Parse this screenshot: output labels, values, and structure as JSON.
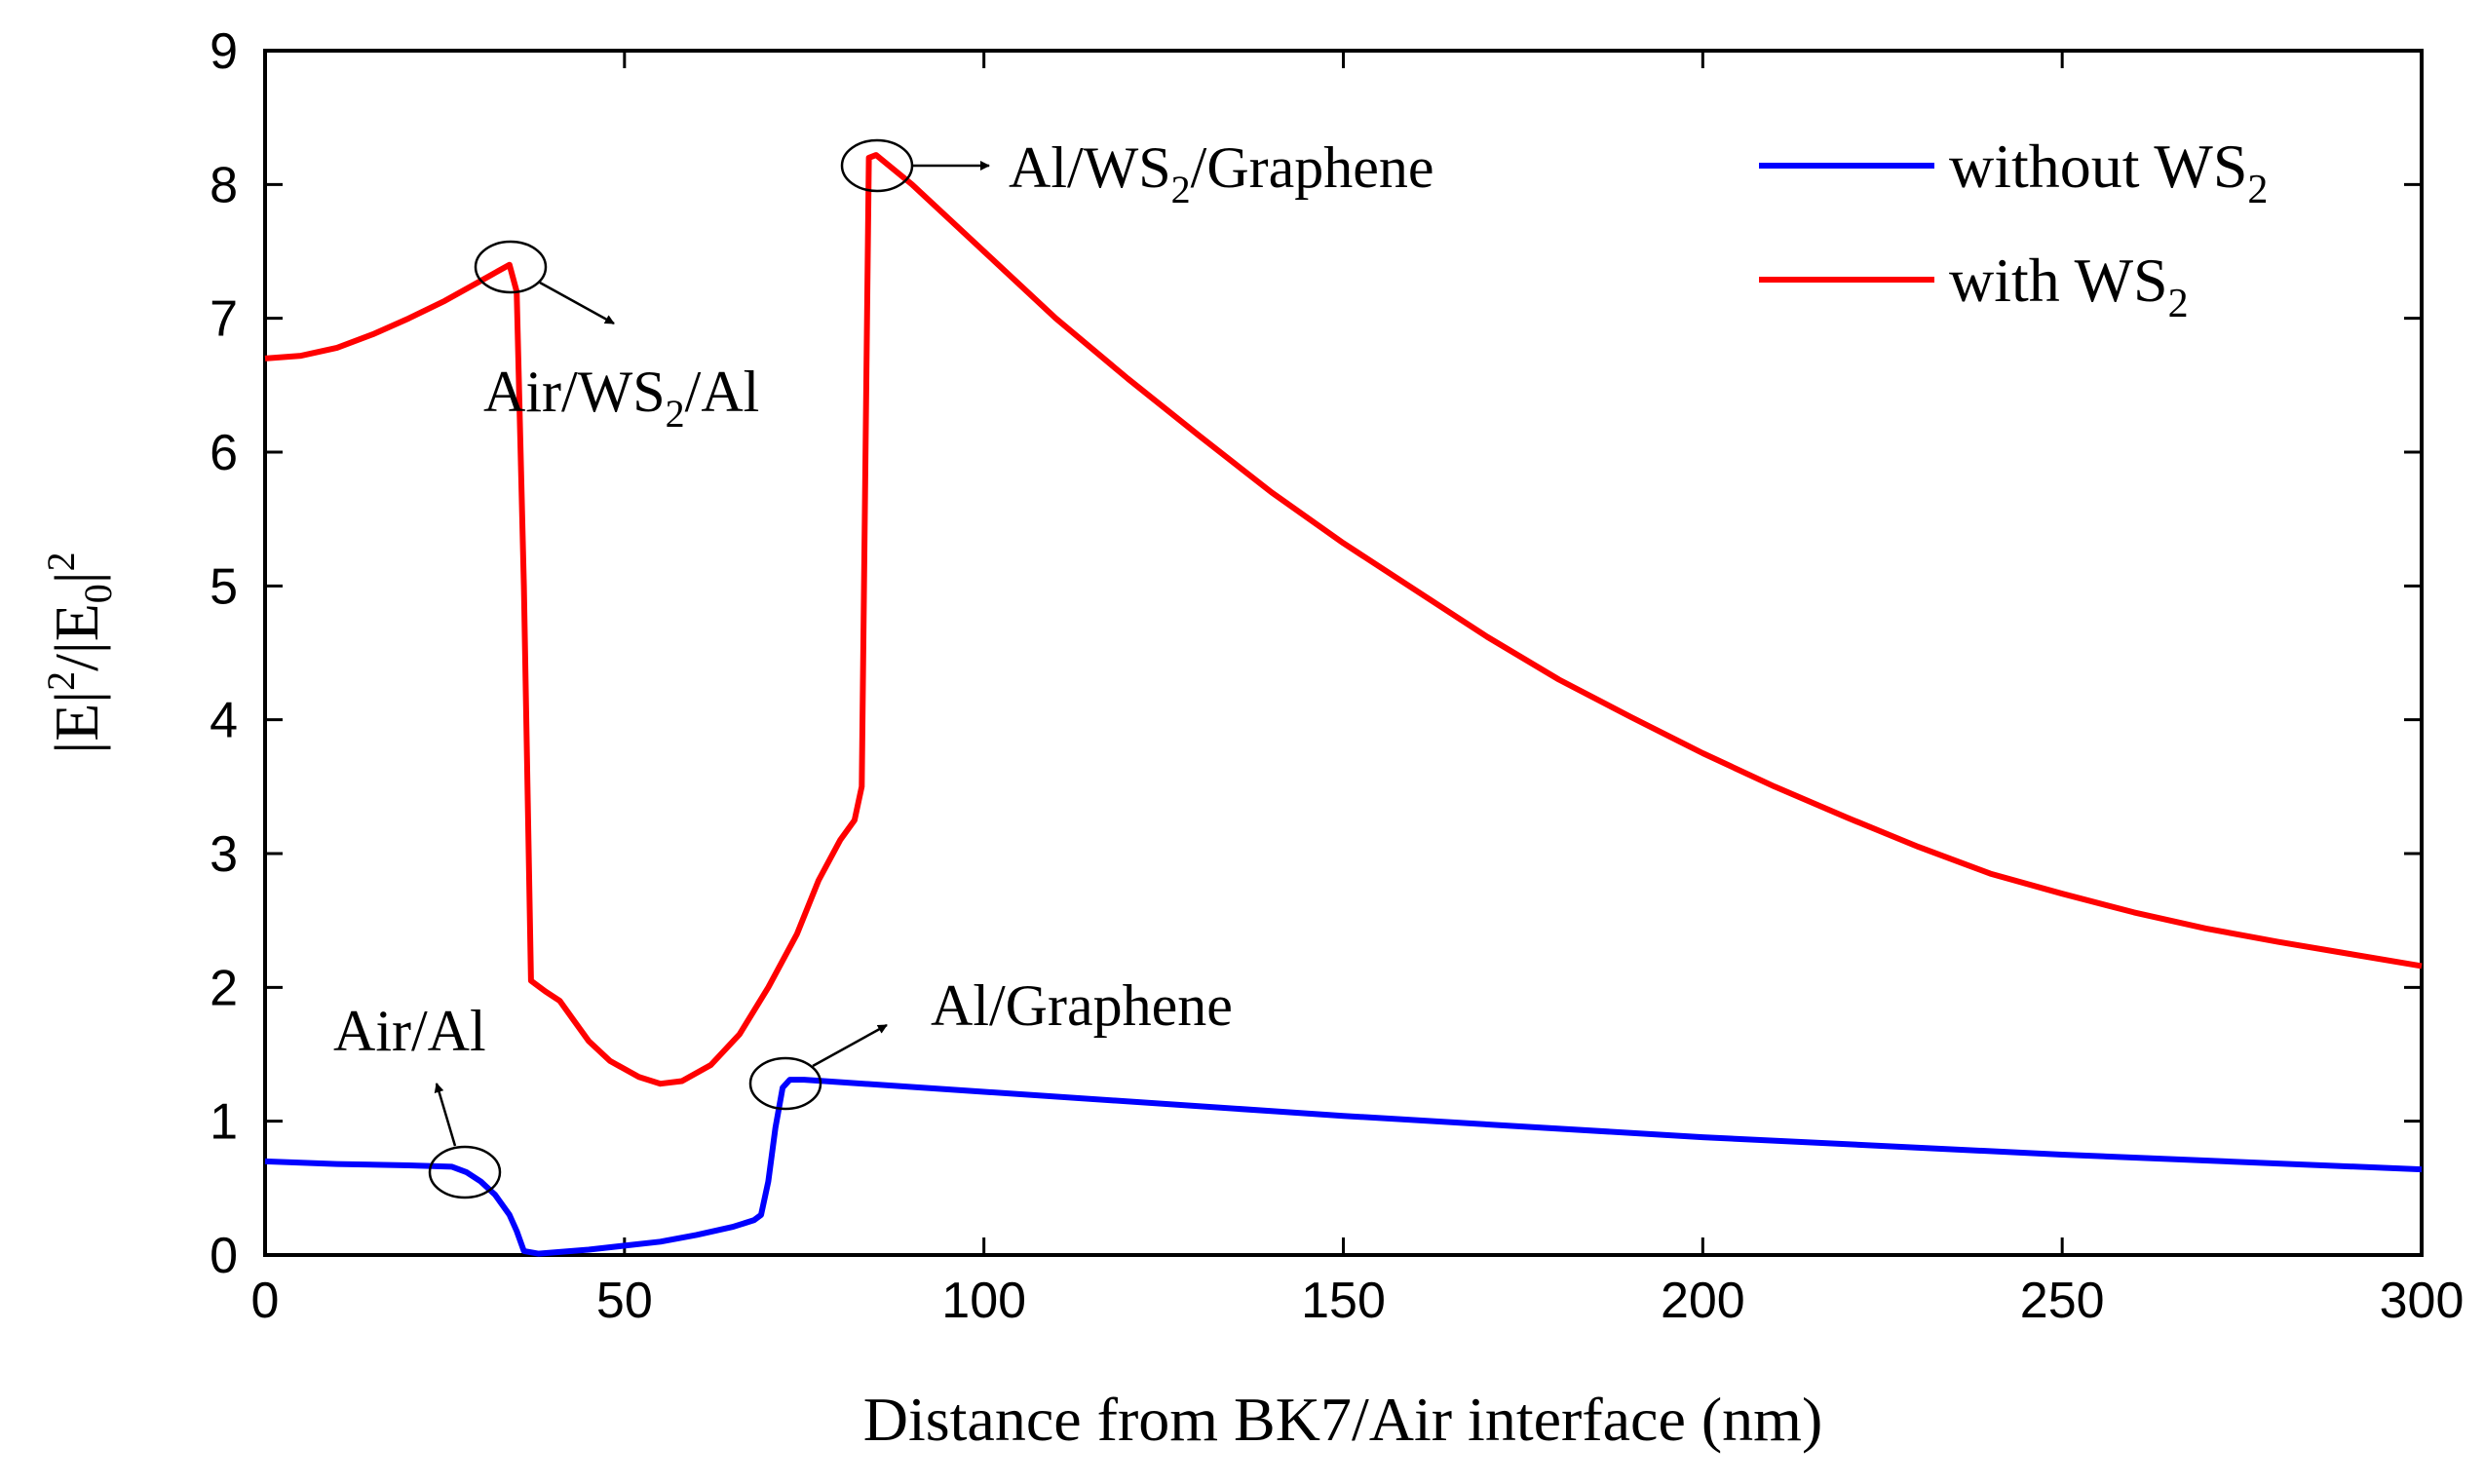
{
  "chart_data": {
    "type": "line",
    "title": "",
    "xlabel": "Distance from BK7/Air interface (nm)",
    "ylabel": "|E|²/|E₀|²",
    "ylabel_parts": [
      "|E|",
      "2",
      "/|E",
      "0",
      "|",
      "2"
    ],
    "xlim": [
      0,
      300
    ],
    "ylim": [
      0,
      9
    ],
    "x_ticks": [
      0,
      50,
      100,
      150,
      200,
      250,
      300
    ],
    "y_ticks": [
      0,
      1,
      2,
      3,
      4,
      5,
      6,
      7,
      8,
      9
    ],
    "x_tick_labels": [
      "0",
      "50",
      "100",
      "150",
      "200",
      "250",
      "300"
    ],
    "y_tick_labels": [
      "0",
      "1",
      "2",
      "3",
      "4",
      "5",
      "6",
      "7",
      "8",
      "9"
    ],
    "grid": false,
    "legend_position": "top-right",
    "series": [
      {
        "name": "without WS2",
        "label_main": "without WS",
        "label_sub": "2",
        "color": "#0000ff",
        "points": [
          [
            0,
            0.7
          ],
          [
            10,
            0.68
          ],
          [
            20,
            0.67
          ],
          [
            26,
            0.66
          ],
          [
            28,
            0.62
          ],
          [
            30,
            0.55
          ],
          [
            32,
            0.45
          ],
          [
            34,
            0.3
          ],
          [
            35,
            0.18
          ],
          [
            36,
            0.03
          ],
          [
            38,
            0.01
          ],
          [
            45,
            0.04
          ],
          [
            50,
            0.07
          ],
          [
            55,
            0.1
          ],
          [
            60,
            0.15
          ],
          [
            65,
            0.21
          ],
          [
            68,
            0.26
          ],
          [
            69,
            0.3
          ],
          [
            70,
            0.55
          ],
          [
            71,
            0.95
          ],
          [
            72,
            1.25
          ],
          [
            73,
            1.31
          ],
          [
            75,
            1.31
          ],
          [
            100,
            1.22
          ],
          [
            150,
            1.04
          ],
          [
            200,
            0.88
          ],
          [
            250,
            0.75
          ],
          [
            300,
            0.64
          ]
        ]
      },
      {
        "name": "with WS2",
        "label_main": "with WS",
        "label_sub": "2",
        "color": "#ff0000",
        "points": [
          [
            0,
            6.7
          ],
          [
            5,
            6.72
          ],
          [
            10,
            6.78
          ],
          [
            15,
            6.88
          ],
          [
            20,
            7.0
          ],
          [
            25,
            7.13
          ],
          [
            30,
            7.28
          ],
          [
            34,
            7.4
          ],
          [
            35,
            7.2
          ],
          [
            36,
            5.0
          ],
          [
            37,
            2.05
          ],
          [
            39,
            1.97
          ],
          [
            41,
            1.9
          ],
          [
            43,
            1.75
          ],
          [
            45,
            1.6
          ],
          [
            48,
            1.45
          ],
          [
            52,
            1.33
          ],
          [
            55,
            1.28
          ],
          [
            58,
            1.3
          ],
          [
            62,
            1.42
          ],
          [
            66,
            1.65
          ],
          [
            70,
            2.0
          ],
          [
            74,
            2.4
          ],
          [
            77,
            2.8
          ],
          [
            80,
            3.1
          ],
          [
            82,
            3.25
          ],
          [
            83,
            3.5
          ],
          [
            84,
            8.2
          ],
          [
            85,
            8.22
          ],
          [
            90,
            8.0
          ],
          [
            100,
            7.5
          ],
          [
            110,
            7.0
          ],
          [
            120,
            6.55
          ],
          [
            130,
            6.12
          ],
          [
            140,
            5.7
          ],
          [
            150,
            5.32
          ],
          [
            160,
            4.97
          ],
          [
            170,
            4.62
          ],
          [
            180,
            4.3
          ],
          [
            190,
            4.02
          ],
          [
            200,
            3.75
          ],
          [
            210,
            3.5
          ],
          [
            220,
            3.27
          ],
          [
            230,
            3.05
          ],
          [
            240,
            2.85
          ],
          [
            250,
            2.7
          ],
          [
            260,
            2.56
          ],
          [
            270,
            2.44
          ],
          [
            280,
            2.34
          ],
          [
            290,
            2.25
          ],
          [
            300,
            2.16
          ]
        ]
      }
    ],
    "annotations": [
      {
        "id": "air-al",
        "text": "Air/Al",
        "sub": "",
        "after": ""
      },
      {
        "id": "air-ws2-al",
        "text": "Air/WS",
        "sub": "2",
        "after": "/Al"
      },
      {
        "id": "al-graphene",
        "text": "Al/Graphene",
        "sub": "",
        "after": ""
      },
      {
        "id": "al-ws2-graphene",
        "text": "Al/WS",
        "sub": "2",
        "after": "/Graphene"
      }
    ]
  }
}
